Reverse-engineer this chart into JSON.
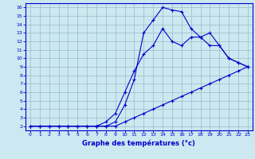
{
  "xlabel": "Graphe des températures (°c)",
  "background_color": "#cce8f0",
  "line_color": "#0000cc",
  "grid_color": "#99bbcc",
  "xlim": [
    -0.5,
    23.5
  ],
  "ylim": [
    1.5,
    16.5
  ],
  "xticks": [
    0,
    1,
    2,
    3,
    4,
    5,
    6,
    7,
    8,
    9,
    10,
    11,
    12,
    13,
    14,
    15,
    16,
    17,
    18,
    19,
    20,
    21,
    22,
    23
  ],
  "yticks": [
    2,
    3,
    4,
    5,
    6,
    7,
    8,
    9,
    10,
    11,
    12,
    13,
    14,
    15,
    16
  ],
  "line1_x": [
    0,
    1,
    2,
    3,
    4,
    5,
    6,
    7,
    8,
    9,
    10,
    11,
    12,
    13,
    14,
    15,
    16,
    17,
    18,
    19,
    20,
    21,
    22,
    23
  ],
  "line1_y": [
    2,
    2,
    2,
    2,
    2,
    2,
    2,
    2,
    2,
    2,
    2.5,
    3.0,
    3.5,
    4.0,
    4.5,
    5.0,
    5.5,
    6.0,
    6.5,
    7.0,
    7.5,
    8.0,
    8.5,
    9.0
  ],
  "line2_x": [
    0,
    1,
    2,
    3,
    4,
    5,
    6,
    7,
    8,
    9,
    10,
    11,
    12,
    13,
    14,
    15,
    16,
    17,
    18,
    19,
    20,
    21,
    22,
    23
  ],
  "line2_y": [
    2,
    2,
    2,
    2,
    2,
    2,
    2,
    2,
    2.5,
    3.5,
    6.0,
    8.5,
    10.5,
    11.5,
    13.5,
    12.0,
    11.5,
    12.5,
    12.5,
    11.5,
    11.5,
    10.0,
    9.5,
    9.0
  ],
  "line3_x": [
    0,
    1,
    2,
    3,
    4,
    5,
    6,
    7,
    8,
    9,
    10,
    11,
    12,
    13,
    14,
    15,
    16,
    17,
    18,
    19,
    20,
    21,
    22,
    23
  ],
  "line3_y": [
    2,
    2,
    2,
    2,
    2,
    2,
    2,
    2,
    2,
    2.5,
    4.5,
    7.5,
    13.0,
    14.5,
    16.0,
    15.7,
    15.5,
    13.5,
    12.5,
    13.0,
    11.5,
    10.0,
    9.5,
    9.0
  ]
}
